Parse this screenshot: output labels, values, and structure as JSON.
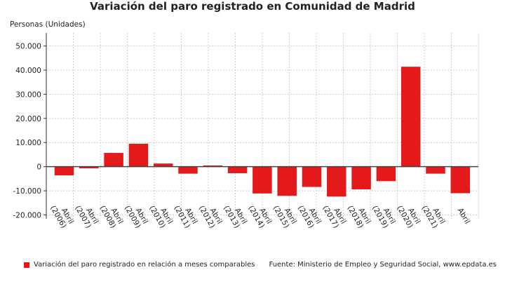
{
  "chart_data": {
    "type": "bar",
    "title": "Variación del paro registrado en Comunidad de Madrid",
    "ylabel": "Personas (Unidades)",
    "xlabel": "",
    "categories": [
      "Abril (2006)",
      "Abril (2007)",
      "Abril (2008)",
      "Abril (2009)",
      "Abril (2010)",
      "Abril (2011)",
      "Abril (2012)",
      "Abril (2013)",
      "Abril (2014)",
      "Abril (2015)",
      "Abril (2016)",
      "Abril (2017)",
      "Abril (2018)",
      "Abril (2019)",
      "Abril (2020)",
      "Abril (2021)",
      "Abril"
    ],
    "series": [
      {
        "name": "Variación del paro registrado en relación a meses comparables",
        "values": [
          -3600,
          -700,
          5700,
          9500,
          1300,
          -2900,
          500,
          -2700,
          -11100,
          -12100,
          -8400,
          -12400,
          -9400,
          -6000,
          41400,
          -2900,
          -11000
        ]
      }
    ],
    "yticks": [
      -20000,
      -10000,
      0,
      10000,
      20000,
      30000,
      40000,
      50000
    ],
    "ytick_labels": [
      "-20.000",
      "-10.000",
      "0",
      "10.000",
      "20.000",
      "30.000",
      "40.000",
      "50.000"
    ],
    "ylim": [
      -21600,
      55400
    ],
    "grid": true,
    "legend_position": "bottom-left",
    "bar_color": "#e3191b",
    "source": "Fuente: Ministerio de Empleo y Seguridad Social, www.epdata.es"
  }
}
